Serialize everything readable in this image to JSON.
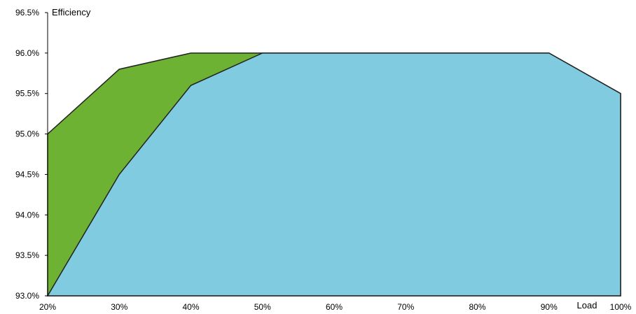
{
  "chart_data": {
    "type": "area",
    "title": "",
    "xlabel": "Load",
    "ylabel": "Efficiency",
    "x": [
      20,
      30,
      40,
      50,
      60,
      70,
      80,
      90,
      100
    ],
    "x_tick_labels": [
      "20%",
      "30%",
      "40%",
      "50%",
      "60%",
      "70%",
      "80%",
      "90%",
      "100%"
    ],
    "y_tick_labels": [
      "93.0%",
      "93.5%",
      "94.0%",
      "94.5%",
      "95.0%",
      "95.5%",
      "96.0%",
      "96.5%"
    ],
    "y_ticks": [
      93.0,
      93.5,
      94.0,
      94.5,
      95.0,
      95.5,
      96.0,
      96.5
    ],
    "xlim": [
      20,
      100
    ],
    "ylim": [
      93.0,
      96.5
    ],
    "grid": false,
    "legend": "none",
    "series": [
      {
        "color": "#6db232",
        "values": [
          95.0,
          95.8,
          96.0,
          96.0,
          96.0,
          96.0,
          96.0,
          96.0,
          95.5
        ]
      },
      {
        "color": "#80cbdf",
        "values": [
          93.0,
          94.5,
          95.6,
          96.0,
          96.0,
          96.0,
          96.0,
          96.0,
          95.5
        ]
      }
    ]
  }
}
